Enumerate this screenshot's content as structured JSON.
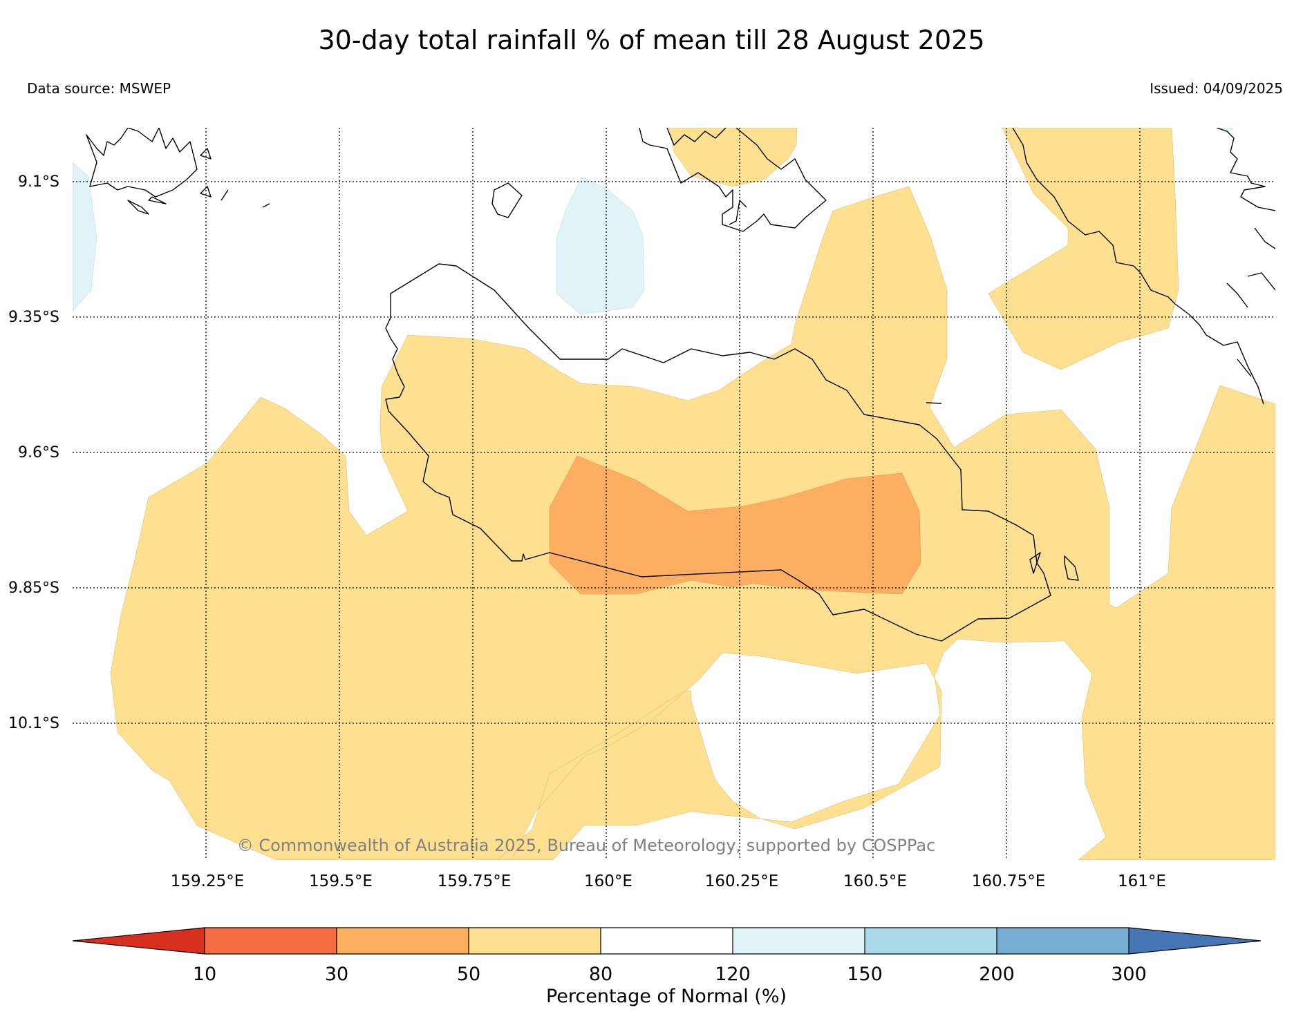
{
  "header": {
    "title": "30-day total rainfall % of mean till 28 August 2025",
    "source": "Data source: MSWEP",
    "issued": "Issued: 04/09/2025"
  },
  "map": {
    "lat_labels": [
      "9.1°S",
      "9.35°S",
      "9.6°S",
      "9.85°S",
      "10.1°S"
    ],
    "lon_labels": [
      "159.25°E",
      "159.5°E",
      "159.75°E",
      "160°E",
      "160.25°E",
      "160.5°E",
      "160.75°E",
      "161°E"
    ],
    "copyright": "© Commonwealth of Australia 2025, Bureau of Meteorology, supported by COSPPac"
  },
  "colorbar": {
    "label": "Percentage of Normal (%)",
    "ticks": [
      "10",
      "30",
      "50",
      "80",
      "120",
      "150",
      "200",
      "300"
    ],
    "colors": [
      "#d7301f",
      "#f46d43",
      "#fdae61",
      "#fee090",
      "#ffffff",
      "#e0f3f8",
      "#abd9e9",
      "#74add1",
      "#4575b4"
    ]
  }
}
